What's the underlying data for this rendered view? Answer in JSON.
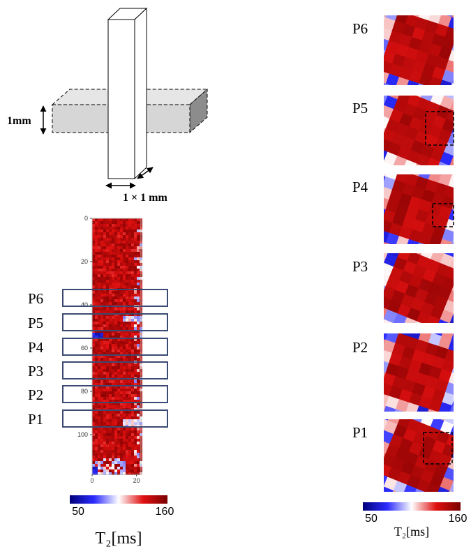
{
  "schematic": {
    "thickness_label": "1mm",
    "cross_section_label": "1 × 1 mm"
  },
  "strip_map": {
    "ylim": [
      0,
      120
    ],
    "xlim": [
      0,
      22
    ],
    "yticks": [
      0,
      20,
      40,
      60,
      80,
      100
    ],
    "xticks": [
      0,
      20
    ],
    "slice_labels": [
      "P6",
      "P5",
      "P4",
      "P3",
      "P2",
      "P1"
    ]
  },
  "slice_maps": {
    "labels": [
      "P6",
      "P5",
      "P4",
      "P3",
      "P2",
      "P1"
    ]
  },
  "colorbars": [
    {
      "min": 50,
      "max": 160,
      "unit_label": "T₂[ms]"
    },
    {
      "min": 50,
      "max": 160,
      "unit_label": "T₂[ms]"
    }
  ]
}
